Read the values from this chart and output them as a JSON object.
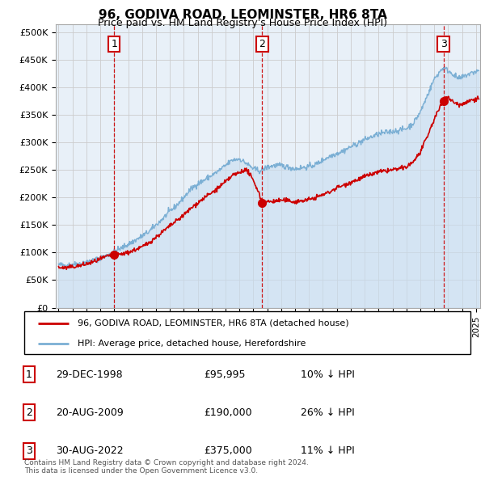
{
  "title": "96, GODIVA ROAD, LEOMINSTER, HR6 8TA",
  "subtitle": "Price paid vs. HM Land Registry's House Price Index (HPI)",
  "ylabel_ticks": [
    "£0",
    "£50K",
    "£100K",
    "£150K",
    "£200K",
    "£250K",
    "£300K",
    "£350K",
    "£400K",
    "£450K",
    "£500K"
  ],
  "ytick_values": [
    0,
    50000,
    100000,
    150000,
    200000,
    250000,
    300000,
    350000,
    400000,
    450000,
    500000
  ],
  "ylim": [
    0,
    515000
  ],
  "xlim_start": 1994.8,
  "xlim_end": 2025.3,
  "hpi_color": "#7bafd4",
  "hpi_fill_color": "#c8ddf0",
  "sale_color": "#cc0000",
  "dashed_color": "#cc0000",
  "grid_color": "#cccccc",
  "background_color": "#e8f0f8",
  "sale_points": [
    {
      "year": 1999.0,
      "price": 95995,
      "label": "1"
    },
    {
      "year": 2009.64,
      "price": 190000,
      "label": "2"
    },
    {
      "year": 2022.66,
      "price": 375000,
      "label": "3"
    }
  ],
  "legend_entries": [
    "96, GODIVA ROAD, LEOMINSTER, HR6 8TA (detached house)",
    "HPI: Average price, detached house, Herefordshire"
  ],
  "table_rows": [
    {
      "num": "1",
      "date": "29-DEC-1998",
      "price": "£95,995",
      "change": "10% ↓ HPI"
    },
    {
      "num": "2",
      "date": "20-AUG-2009",
      "price": "£190,000",
      "change": "26% ↓ HPI"
    },
    {
      "num": "3",
      "date": "30-AUG-2022",
      "price": "£375,000",
      "change": "11% ↓ HPI"
    }
  ],
  "footer": "Contains HM Land Registry data © Crown copyright and database right 2024.\nThis data is licensed under the Open Government Licence v3.0.",
  "hpi_anchors": [
    [
      1995.0,
      78000
    ],
    [
      1995.5,
      77000
    ],
    [
      1996.0,
      78500
    ],
    [
      1996.5,
      80000
    ],
    [
      1997.0,
      83000
    ],
    [
      1997.5,
      86000
    ],
    [
      1998.0,
      90000
    ],
    [
      1998.5,
      95000
    ],
    [
      1999.0,
      102000
    ],
    [
      1999.5,
      108000
    ],
    [
      2000.0,
      115000
    ],
    [
      2000.5,
      122000
    ],
    [
      2001.0,
      130000
    ],
    [
      2001.5,
      138000
    ],
    [
      2002.0,
      150000
    ],
    [
      2002.5,
      162000
    ],
    [
      2003.0,
      175000
    ],
    [
      2003.5,
      186000
    ],
    [
      2004.0,
      200000
    ],
    [
      2004.5,
      215000
    ],
    [
      2005.0,
      225000
    ],
    [
      2005.5,
      232000
    ],
    [
      2006.0,
      240000
    ],
    [
      2006.5,
      248000
    ],
    [
      2007.0,
      258000
    ],
    [
      2007.5,
      268000
    ],
    [
      2008.0,
      270000
    ],
    [
      2008.5,
      262000
    ],
    [
      2009.0,
      252000
    ],
    [
      2009.5,
      248000
    ],
    [
      2010.0,
      255000
    ],
    [
      2010.5,
      258000
    ],
    [
      2011.0,
      258000
    ],
    [
      2011.5,
      255000
    ],
    [
      2012.0,
      252000
    ],
    [
      2012.5,
      254000
    ],
    [
      2013.0,
      256000
    ],
    [
      2013.5,
      260000
    ],
    [
      2014.0,
      268000
    ],
    [
      2014.5,
      275000
    ],
    [
      2015.0,
      280000
    ],
    [
      2015.5,
      285000
    ],
    [
      2016.0,
      292000
    ],
    [
      2016.5,
      298000
    ],
    [
      2017.0,
      305000
    ],
    [
      2017.5,
      310000
    ],
    [
      2018.0,
      315000
    ],
    [
      2018.5,
      318000
    ],
    [
      2019.0,
      320000
    ],
    [
      2019.5,
      322000
    ],
    [
      2020.0,
      325000
    ],
    [
      2020.5,
      335000
    ],
    [
      2021.0,
      355000
    ],
    [
      2021.5,
      385000
    ],
    [
      2022.0,
      415000
    ],
    [
      2022.3,
      425000
    ],
    [
      2022.5,
      432000
    ],
    [
      2022.7,
      435000
    ],
    [
      2023.0,
      430000
    ],
    [
      2023.3,
      425000
    ],
    [
      2023.5,
      420000
    ],
    [
      2023.8,
      415000
    ],
    [
      2024.0,
      418000
    ],
    [
      2024.3,
      422000
    ],
    [
      2024.6,
      425000
    ],
    [
      2024.9,
      428000
    ],
    [
      2025.2,
      430000
    ]
  ],
  "sale_anchors": [
    [
      1995.0,
      73000
    ],
    [
      1995.5,
      72000
    ],
    [
      1996.0,
      74000
    ],
    [
      1996.5,
      76000
    ],
    [
      1997.0,
      79000
    ],
    [
      1997.5,
      83000
    ],
    [
      1998.0,
      88000
    ],
    [
      1998.5,
      93000
    ],
    [
      1999.0,
      95995
    ],
    [
      1999.5,
      97000
    ],
    [
      2000.0,
      100000
    ],
    [
      2000.5,
      105000
    ],
    [
      2001.0,
      110000
    ],
    [
      2001.5,
      118000
    ],
    [
      2002.0,
      128000
    ],
    [
      2002.5,
      138000
    ],
    [
      2003.0,
      148000
    ],
    [
      2003.5,
      158000
    ],
    [
      2004.0,
      168000
    ],
    [
      2004.5,
      180000
    ],
    [
      2005.0,
      190000
    ],
    [
      2005.5,
      200000
    ],
    [
      2006.0,
      208000
    ],
    [
      2006.5,
      218000
    ],
    [
      2007.0,
      228000
    ],
    [
      2007.5,
      240000
    ],
    [
      2008.0,
      245000
    ],
    [
      2008.3,
      250000
    ],
    [
      2008.6,
      248000
    ],
    [
      2009.0,
      230000
    ],
    [
      2009.3,
      215000
    ],
    [
      2009.64,
      190000
    ],
    [
      2010.0,
      192000
    ],
    [
      2010.5,
      193000
    ],
    [
      2011.0,
      195000
    ],
    [
      2011.5,
      194000
    ],
    [
      2012.0,
      192000
    ],
    [
      2012.5,
      194000
    ],
    [
      2013.0,
      196000
    ],
    [
      2013.5,
      200000
    ],
    [
      2014.0,
      205000
    ],
    [
      2014.5,
      210000
    ],
    [
      2015.0,
      218000
    ],
    [
      2015.5,
      222000
    ],
    [
      2016.0,
      228000
    ],
    [
      2016.5,
      232000
    ],
    [
      2017.0,
      238000
    ],
    [
      2017.5,
      242000
    ],
    [
      2018.0,
      246000
    ],
    [
      2018.5,
      248000
    ],
    [
      2019.0,
      250000
    ],
    [
      2019.5,
      252000
    ],
    [
      2020.0,
      255000
    ],
    [
      2020.5,
      265000
    ],
    [
      2021.0,
      282000
    ],
    [
      2021.5,
      310000
    ],
    [
      2022.0,
      342000
    ],
    [
      2022.3,
      358000
    ],
    [
      2022.66,
      375000
    ],
    [
      2022.9,
      385000
    ],
    [
      2023.0,
      380000
    ],
    [
      2023.3,
      375000
    ],
    [
      2023.6,
      370000
    ],
    [
      2023.9,
      368000
    ],
    [
      2024.2,
      372000
    ],
    [
      2024.5,
      375000
    ],
    [
      2024.8,
      378000
    ],
    [
      2025.2,
      380000
    ]
  ]
}
